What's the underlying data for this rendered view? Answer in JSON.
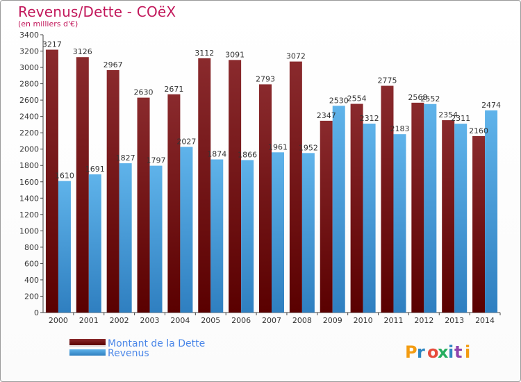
{
  "header": {
    "title": "Revenus/Dette - COëX",
    "subtitle": "(en milliers d'€)"
  },
  "logo": {
    "text": "Proxiti",
    "colors": [
      "#f39c12",
      "#2e86c1",
      "#e74c3c",
      "#27ae60",
      "#2e86c1",
      "#8e44ad",
      "#f39c12"
    ]
  },
  "chart_data": {
    "type": "bar",
    "title": "Revenus/Dette - COëX",
    "subtitle": "(en milliers d'€)",
    "categories": [
      "2000",
      "2001",
      "2002",
      "2003",
      "2004",
      "2005",
      "2006",
      "2007",
      "2008",
      "2009",
      "2010",
      "2011",
      "2012",
      "2013",
      "2014"
    ],
    "series": [
      {
        "name": "Montant de la Dette",
        "color": "#7a1f22",
        "values": [
          3217,
          3126,
          2967,
          2630,
          2671,
          3112,
          3091,
          2793,
          3072,
          2347,
          2554,
          2775,
          2568,
          2354,
          2160
        ]
      },
      {
        "name": "Revenus",
        "color": "#4aa3df",
        "values": [
          1610,
          1691,
          1827,
          1797,
          2027,
          1874,
          1866,
          1961,
          1952,
          2530,
          2312,
          2183,
          2552,
          2311,
          2474
        ]
      }
    ],
    "ylim": [
      0,
      3400
    ],
    "yticks": [
      0,
      200,
      400,
      600,
      800,
      1000,
      1200,
      1400,
      1600,
      1800,
      2000,
      2200,
      2400,
      2600,
      2800,
      3000,
      3200,
      3400
    ],
    "grid": false,
    "legend_position": "bottom-left"
  }
}
